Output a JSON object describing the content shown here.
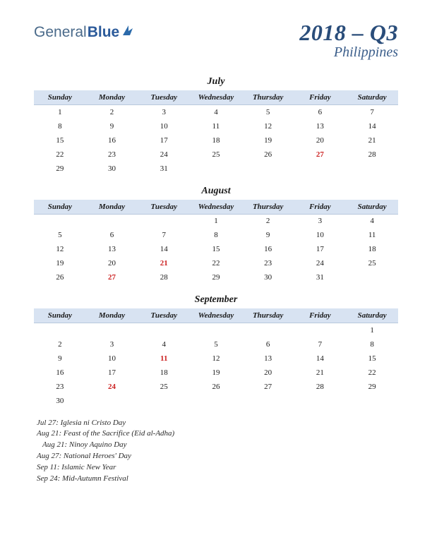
{
  "logo": {
    "part1": "General",
    "part2": "Blue"
  },
  "title": {
    "main": "2018 – Q3",
    "sub": "Philippines"
  },
  "day_headers": [
    "Sunday",
    "Monday",
    "Tuesday",
    "Wednesday",
    "Thursday",
    "Friday",
    "Saturday"
  ],
  "colors": {
    "header_bg": "#d8e3f2",
    "title_color": "#2a4d7a",
    "holiday_color": "#cc2222"
  },
  "months": [
    {
      "name": "July",
      "weeks": [
        [
          {
            "d": "1"
          },
          {
            "d": "2"
          },
          {
            "d": "3"
          },
          {
            "d": "4"
          },
          {
            "d": "5"
          },
          {
            "d": "6"
          },
          {
            "d": "7"
          }
        ],
        [
          {
            "d": "8"
          },
          {
            "d": "9"
          },
          {
            "d": "10"
          },
          {
            "d": "11"
          },
          {
            "d": "12"
          },
          {
            "d": "13"
          },
          {
            "d": "14"
          }
        ],
        [
          {
            "d": "15"
          },
          {
            "d": "16"
          },
          {
            "d": "17"
          },
          {
            "d": "18"
          },
          {
            "d": "19"
          },
          {
            "d": "20"
          },
          {
            "d": "21"
          }
        ],
        [
          {
            "d": "22"
          },
          {
            "d": "23"
          },
          {
            "d": "24"
          },
          {
            "d": "25"
          },
          {
            "d": "26"
          },
          {
            "d": "27",
            "h": true
          },
          {
            "d": "28"
          }
        ],
        [
          {
            "d": "29"
          },
          {
            "d": "30"
          },
          {
            "d": "31"
          },
          {
            "d": ""
          },
          {
            "d": ""
          },
          {
            "d": ""
          },
          {
            "d": ""
          }
        ]
      ]
    },
    {
      "name": "August",
      "weeks": [
        [
          {
            "d": ""
          },
          {
            "d": ""
          },
          {
            "d": ""
          },
          {
            "d": "1"
          },
          {
            "d": "2"
          },
          {
            "d": "3"
          },
          {
            "d": "4"
          }
        ],
        [
          {
            "d": "5"
          },
          {
            "d": "6"
          },
          {
            "d": "7"
          },
          {
            "d": "8"
          },
          {
            "d": "9"
          },
          {
            "d": "10"
          },
          {
            "d": "11"
          }
        ],
        [
          {
            "d": "12"
          },
          {
            "d": "13"
          },
          {
            "d": "14"
          },
          {
            "d": "15"
          },
          {
            "d": "16"
          },
          {
            "d": "17"
          },
          {
            "d": "18"
          }
        ],
        [
          {
            "d": "19"
          },
          {
            "d": "20"
          },
          {
            "d": "21",
            "h": true
          },
          {
            "d": "22"
          },
          {
            "d": "23"
          },
          {
            "d": "24"
          },
          {
            "d": "25"
          }
        ],
        [
          {
            "d": "26"
          },
          {
            "d": "27",
            "h": true
          },
          {
            "d": "28"
          },
          {
            "d": "29"
          },
          {
            "d": "30"
          },
          {
            "d": "31"
          },
          {
            "d": ""
          }
        ]
      ]
    },
    {
      "name": "September",
      "weeks": [
        [
          {
            "d": ""
          },
          {
            "d": ""
          },
          {
            "d": ""
          },
          {
            "d": ""
          },
          {
            "d": ""
          },
          {
            "d": ""
          },
          {
            "d": "1"
          }
        ],
        [
          {
            "d": "2"
          },
          {
            "d": "3"
          },
          {
            "d": "4"
          },
          {
            "d": "5"
          },
          {
            "d": "6"
          },
          {
            "d": "7"
          },
          {
            "d": "8"
          }
        ],
        [
          {
            "d": "9"
          },
          {
            "d": "10"
          },
          {
            "d": "11",
            "h": true
          },
          {
            "d": "12"
          },
          {
            "d": "13"
          },
          {
            "d": "14"
          },
          {
            "d": "15"
          }
        ],
        [
          {
            "d": "16"
          },
          {
            "d": "17"
          },
          {
            "d": "18"
          },
          {
            "d": "19"
          },
          {
            "d": "20"
          },
          {
            "d": "21"
          },
          {
            "d": "22"
          }
        ],
        [
          {
            "d": "23"
          },
          {
            "d": "24",
            "h": true
          },
          {
            "d": "25"
          },
          {
            "d": "26"
          },
          {
            "d": "27"
          },
          {
            "d": "28"
          },
          {
            "d": "29"
          }
        ],
        [
          {
            "d": "30"
          },
          {
            "d": ""
          },
          {
            "d": ""
          },
          {
            "d": ""
          },
          {
            "d": ""
          },
          {
            "d": ""
          },
          {
            "d": ""
          }
        ]
      ]
    }
  ],
  "holidays": [
    "Jul 27: Iglesia ni Cristo Day",
    "Aug 21: Feast of the Sacrifice (Eid al-Adha)",
    "Aug 21: Ninoy Aquino Day",
    "Aug 27: National Heroes' Day",
    "Sep 11: Islamic New Year",
    "Sep 24: Mid-Autumn Festival"
  ]
}
